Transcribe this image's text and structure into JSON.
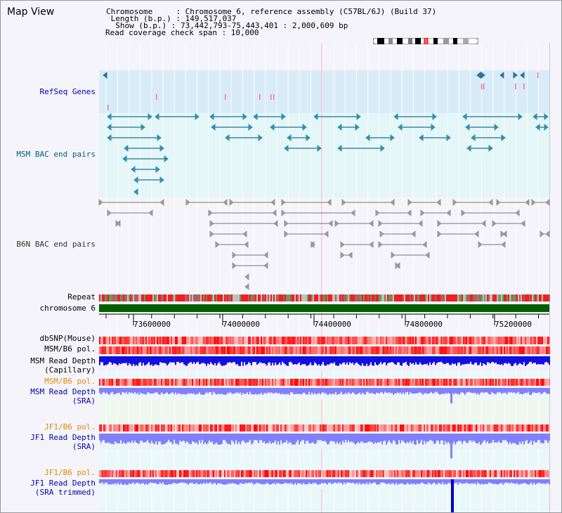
{
  "header": {
    "title": "Map View",
    "chromosome_line": "Chromosome     : Chromosome 6, reference assembly (C57BL/6J) (Build 37)",
    "length_line": " Length (b.p.) : 149,517,037",
    "show_line": "  Show (b.p.) : 73,442,793-75,443,401 : 2,000,609 bp",
    "coverage_line": "Read coverage check span : 10,000"
  },
  "tracks": {
    "refseq": "RefSeq Genes",
    "msm_bac": "MSM BAC end pairs",
    "b6n_bac": "B6N BAC end pairs",
    "repeat": "Repeat",
    "chromosome": "chromosome 6",
    "dbsnp": "dbSNP(Mouse)",
    "msm_b6_pol_1": "MSM/B6 pol.",
    "msm_depth_cap_1": "MSM Read Depth",
    "msm_depth_cap_2": "(Capillary)",
    "msm_b6_pol_2": "MSM/B6 pol.",
    "msm_depth_sra_1": "MSM Read Depth",
    "msm_depth_sra_2": "(SRA)",
    "jf1_b6_pol_1": "JF1/B6 pol.",
    "jf1_depth_sra_1": "JF1 Read Depth",
    "jf1_depth_sra_2": "(SRA)",
    "jf1_b6_pol_2": "JF1/B6 pol.",
    "jf1_depth_trim_1": "JF1 Read Depth",
    "jf1_depth_trim_2": "(SRA trimmed)"
  },
  "axis": {
    "ticks": [
      "73600000",
      "74000000",
      "74400000",
      "74800000",
      "75200000"
    ]
  },
  "colors": {
    "refseq_bg": "#d8ecf8",
    "msm_bg": "#e4f6f8",
    "b6n_bg": "#f4f4fa",
    "lower_bg": "#eaf8fa",
    "chrom_green": "#006000",
    "depth_blue": "#1010e0",
    "depth_light": "#8080ff",
    "snp_red": "#ff6060"
  }
}
